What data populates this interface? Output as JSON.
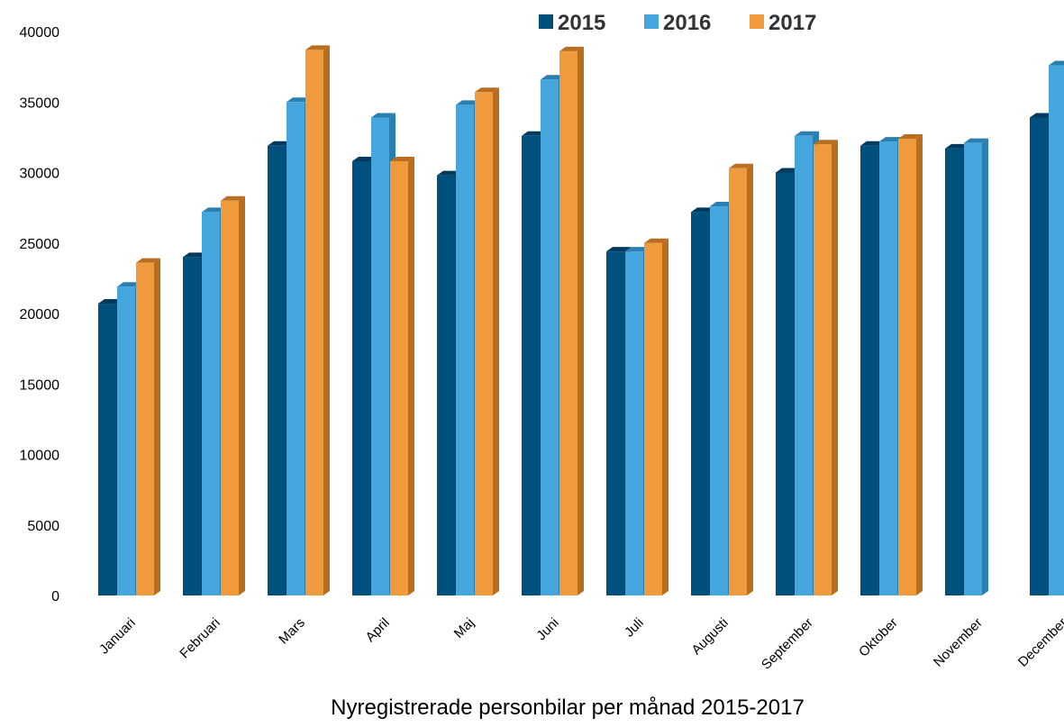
{
  "chart_data": {
    "type": "bar",
    "xlabel": "Nyregistrerade personbilar per månad 2015-2017",
    "ylabel": "",
    "ylim": [
      0,
      40000
    ],
    "yticks": [
      "0",
      "5000",
      "10000",
      "15000",
      "20000",
      "25000",
      "30000",
      "35000",
      "40000"
    ],
    "legend_position": "top-right",
    "categories": [
      "Januari",
      "Februari",
      "Mars",
      "April",
      "Maj",
      "Juni",
      "Juli",
      "Augusti",
      "September",
      "Oktober",
      "November",
      "December"
    ],
    "series": [
      {
        "name": "2015",
        "color": "#00507d",
        "side": "#003a5c",
        "values": [
          20700,
          24000,
          31900,
          30800,
          29800,
          32600,
          24400,
          27200,
          30000,
          31900,
          31700,
          33900
        ]
      },
      {
        "name": "2016",
        "color": "#44a6dd",
        "side": "#2a7fb0",
        "values": [
          21900,
          27200,
          35000,
          33900,
          34800,
          36600,
          24400,
          27600,
          32600,
          32200,
          32100,
          37600
        ]
      },
      {
        "name": "2017",
        "color": "#ef9a3c",
        "side": "#b86d1f",
        "values": [
          23600,
          28000,
          38700,
          30800,
          35700,
          38600,
          25000,
          30300,
          32000,
          32400,
          null,
          null
        ]
      }
    ]
  }
}
